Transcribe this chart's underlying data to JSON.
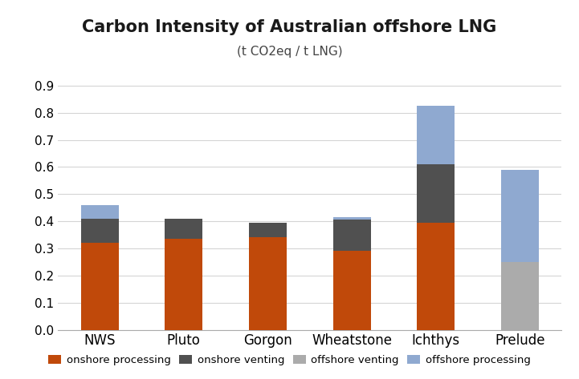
{
  "categories": [
    "NWS",
    "Pluto",
    "Gorgon",
    "Wheatstone",
    "Ichthys",
    "Prelude"
  ],
  "onshore_processing": [
    0.32,
    0.335,
    0.34,
    0.29,
    0.395,
    0.0
  ],
  "onshore_venting": [
    0.09,
    0.075,
    0.055,
    0.115,
    0.215,
    0.0
  ],
  "offshore_venting": [
    0.0,
    0.0,
    0.0,
    0.0,
    0.0,
    0.25
  ],
  "offshore_processing": [
    0.05,
    0.0,
    0.0,
    0.01,
    0.215,
    0.34
  ],
  "colors": {
    "onshore_processing": "#C0490A",
    "onshore_venting": "#505050",
    "offshore_venting": "#ABABAB",
    "offshore_processing": "#8FA9D0"
  },
  "title": "Carbon Intensity of Australian offshore LNG",
  "subtitle": "(t CO2eq / t LNG)",
  "ylim": [
    0,
    0.95
  ],
  "yticks": [
    0,
    0.1,
    0.2,
    0.3,
    0.4,
    0.5,
    0.6,
    0.7,
    0.8,
    0.9
  ],
  "legend_labels": [
    "onshore processing",
    "onshore venting",
    "offshore venting",
    "offshore processing"
  ],
  "bar_width": 0.45,
  "title_fontsize": 15,
  "subtitle_fontsize": 11,
  "tick_fontsize": 11,
  "xlabel_fontsize": 12
}
